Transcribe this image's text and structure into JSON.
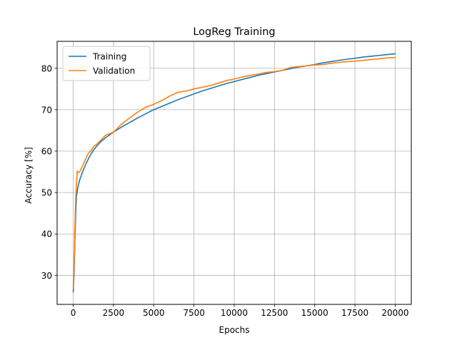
{
  "chart_data": {
    "type": "line",
    "title": "LogReg Training",
    "xlabel": "Epochs",
    "ylabel": "Accuracy [%]",
    "xlim": [
      -1000,
      21000
    ],
    "ylim": [
      23,
      86.5
    ],
    "xticks": [
      0,
      2500,
      5000,
      7500,
      10000,
      12500,
      15000,
      17500,
      20000
    ],
    "yticks": [
      30,
      40,
      50,
      60,
      70,
      80
    ],
    "grid": true,
    "legend_position": "upper-left",
    "series": [
      {
        "name": "Training",
        "color": "#1f77b4",
        "x": [
          0,
          50,
          100,
          150,
          200,
          300,
          400,
          600,
          800,
          1000,
          1250,
          1500,
          1750,
          2000,
          2500,
          3000,
          3500,
          4000,
          4500,
          5000,
          5500,
          6000,
          6500,
          7000,
          7500,
          8000,
          8500,
          9000,
          9500,
          10000,
          10500,
          11000,
          11500,
          12000,
          12500,
          13000,
          13500,
          14000,
          14500,
          15000,
          15500,
          16000,
          16500,
          17000,
          17500,
          18000,
          18500,
          19000,
          19500,
          20000
        ],
        "y": [
          26.0,
          30.0,
          38.0,
          44.5,
          49.0,
          51.5,
          53.0,
          55.2,
          57.0,
          58.6,
          60.2,
          61.4,
          62.4,
          63.2,
          64.6,
          65.8,
          66.9,
          68.0,
          69.0,
          70.0,
          70.8,
          71.6,
          72.4,
          73.1,
          73.8,
          74.5,
          75.1,
          75.7,
          76.3,
          76.8,
          77.3,
          77.8,
          78.3,
          78.7,
          79.1,
          79.5,
          79.9,
          80.3,
          80.6,
          80.9,
          81.3,
          81.6,
          81.9,
          82.2,
          82.4,
          82.7,
          82.9,
          83.1,
          83.3,
          83.5
        ]
      },
      {
        "name": "Validation",
        "color": "#ff7f0e",
        "x": [
          0,
          50,
          100,
          150,
          200,
          250,
          300,
          400,
          500,
          700,
          900,
          1100,
          1300,
          1500,
          1800,
          2000,
          2500,
          3000,
          3500,
          4000,
          4500,
          5000,
          5500,
          6000,
          6500,
          7000,
          7500,
          8000,
          8500,
          9000,
          9500,
          10000,
          10500,
          11000,
          11500,
          12000,
          12500,
          13000,
          13500,
          14000,
          14500,
          15000,
          15500,
          16000,
          16500,
          17000,
          17500,
          18000,
          18500,
          19000,
          19500,
          20000
        ],
        "y": [
          27.0,
          32.0,
          41.0,
          48.0,
          52.0,
          55.2,
          54.8,
          55.0,
          55.8,
          57.5,
          59.2,
          60.2,
          61.2,
          61.8,
          63.0,
          63.8,
          64.6,
          66.5,
          68.0,
          69.4,
          70.6,
          71.3,
          72.2,
          73.3,
          74.2,
          74.5,
          75.0,
          75.4,
          75.8,
          76.4,
          77.0,
          77.4,
          77.9,
          78.3,
          78.6,
          79.0,
          79.2,
          79.5,
          80.2,
          80.4,
          80.6,
          80.8,
          80.9,
          81.2,
          81.4,
          81.6,
          81.7,
          81.9,
          82.1,
          82.3,
          82.5,
          82.6
        ]
      }
    ]
  }
}
